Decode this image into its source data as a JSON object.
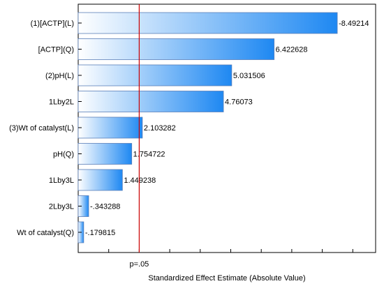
{
  "chart_data": {
    "type": "bar",
    "orientation": "horizontal",
    "title": "",
    "xlabel": "Standardized Effect Estimate (Absolute Value)",
    "ylabel": "",
    "xlim": [
      0,
      10
    ],
    "categories": [
      "(1)[ACTP](L)",
      "[ACTP](Q)",
      "(2)pH(L)",
      "1Lby2L",
      "(3)Wt of catalyst(L)",
      "pH(Q)",
      "1Lby3L",
      "2Lby3L",
      "Wt of catalyst(Q)"
    ],
    "values": [
      8.49214,
      6.422628,
      5.031506,
      4.76073,
      2.103282,
      1.754722,
      1.449238,
      0.343288,
      0.179815
    ],
    "value_labels": [
      "-8.49214",
      "6.422628",
      "5.031506",
      "4.76073",
      "2.103282",
      "1.754722",
      "1.449238",
      "-.343288",
      "-.179815"
    ],
    "reference_line": {
      "value": 2.0,
      "label": "p=.05",
      "color": "#cc0000"
    },
    "grid": false,
    "colors": {
      "bar_start": "#ffffff",
      "bar_end": "#1e88f2",
      "bar_stroke": "#5b7fb8",
      "frame": "#000000"
    }
  }
}
